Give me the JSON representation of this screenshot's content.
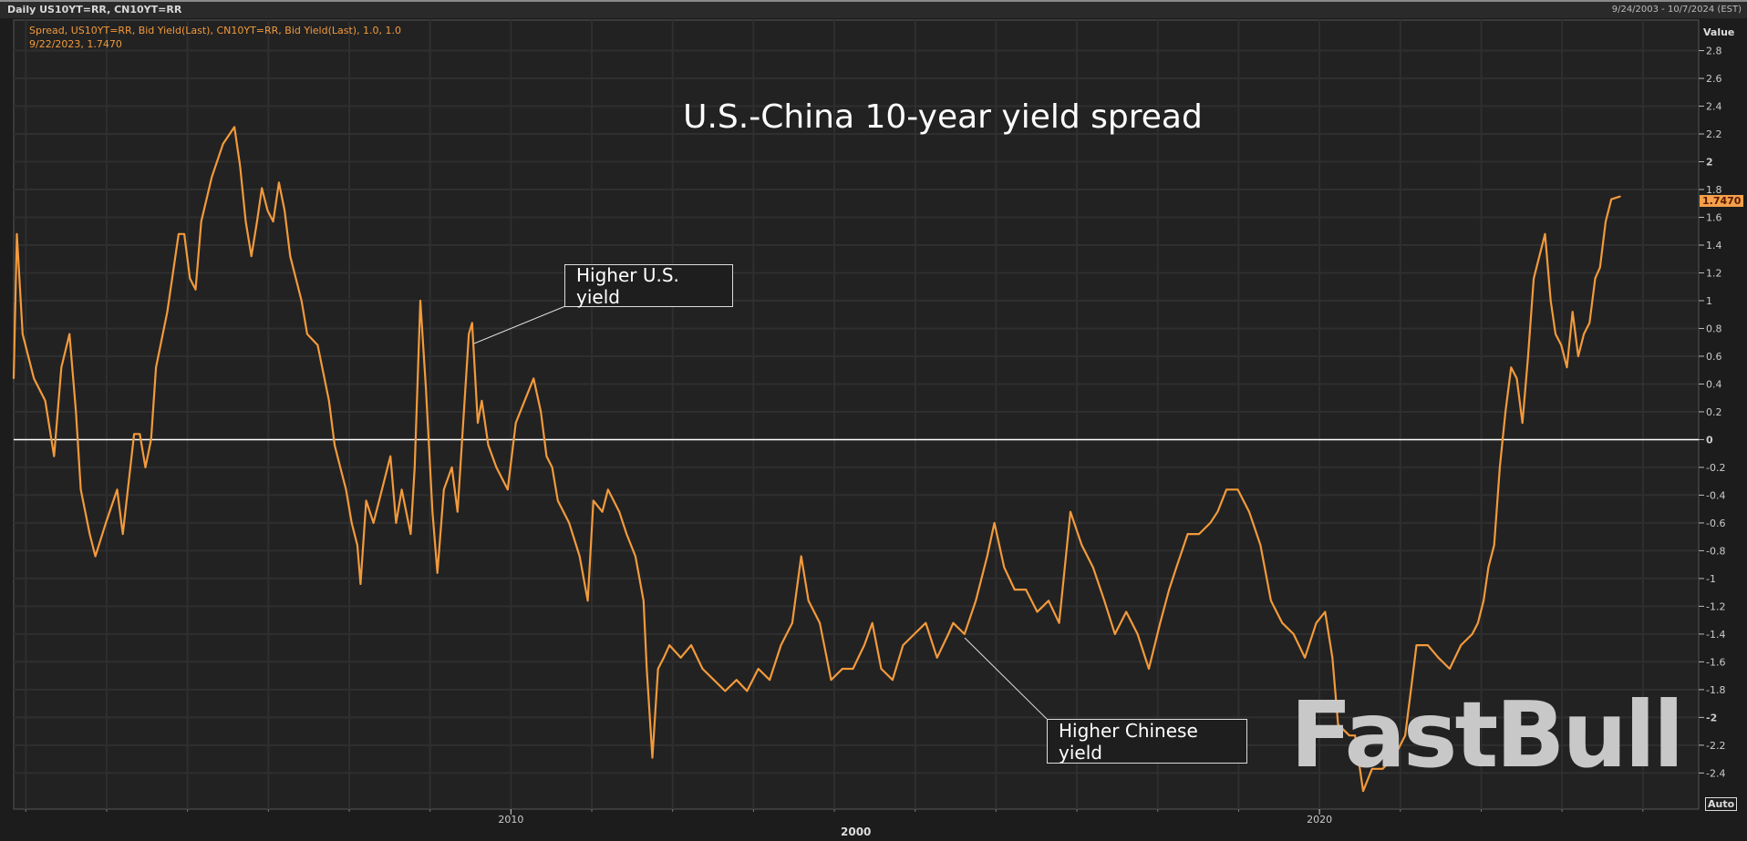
{
  "header": {
    "title": "Daily US10YT=RR, CN10YT=RR",
    "date_range": "9/24/2003 - 10/7/2024 (EST)"
  },
  "legend": {
    "series_line": "Spread, US10YT=RR, Bid Yield(Last), CN10YT=RR, Bid Yield(Last),  1.0, 1.0",
    "cursor_line": "9/22/2023, 1.7470"
  },
  "axis": {
    "value_label": "Value",
    "last_value": "1.7470",
    "auto_label": "Auto",
    "century_label": "2000"
  },
  "watermark": "FastBull",
  "colors": {
    "line": "#f29a3c",
    "background": "#222222",
    "zero_line": "#ffffff",
    "badge": "#f5a04a"
  },
  "chart_data": {
    "type": "line",
    "title": "U.S.-China 10-year yield spread",
    "xlim": [
      2003.85,
      2024.69
    ],
    "ylim": [
      -2.66,
      3.02
    ],
    "x_ticks": [
      {
        "v": 2010,
        "label": "2010"
      },
      {
        "v": 2020,
        "label": "2020"
      }
    ],
    "y_ticks": [
      2.8,
      2.6,
      2.4,
      2.2,
      2,
      1.8,
      1.6,
      1.4,
      1.2,
      1,
      0.8,
      0.6,
      0.4,
      0.2,
      0,
      -0.2,
      -0.4,
      -0.6,
      -0.8,
      -1,
      -1.2,
      -1.4,
      -1.6,
      -1.8,
      -2,
      -2.2,
      -2.4
    ],
    "grid": true,
    "reference_line": 0,
    "annotations": [
      {
        "text": "Higher U.S. yield",
        "x": 2009.52,
        "y": 0.84
      },
      {
        "text": "Higher Chinese yield",
        "x": 2015.61,
        "y": -1.4
      }
    ],
    "series": [
      {
        "x": [
          2003.85,
          2003.89,
          2003.96,
          2004.1,
          2004.24,
          2004.35,
          2004.44,
          2004.54,
          2004.62,
          2004.68,
          2004.79,
          2004.86,
          2004.99,
          2005.13,
          2005.2,
          2005.34,
          2005.41,
          2005.48,
          2005.55,
          2005.61,
          2005.75,
          2005.89,
          2005.96,
          2006.03,
          2006.1,
          2006.17,
          2006.3,
          2006.44,
          2006.58,
          2006.65,
          2006.72,
          2006.79,
          2006.86,
          2006.92,
          2006.99,
          2007.06,
          2007.13,
          2007.2,
          2007.27,
          2007.34,
          2007.41,
          2007.48,
          2007.61,
          2007.75,
          2007.82,
          2007.89,
          2007.96,
          2008.03,
          2008.1,
          2008.14,
          2008.21,
          2008.3,
          2008.44,
          2008.51,
          2008.58,
          2008.65,
          2008.76,
          2008.81,
          2008.88,
          2008.95,
          2009.03,
          2009.09,
          2009.17,
          2009.27,
          2009.34,
          2009.41,
          2009.48,
          2009.52,
          2009.59,
          2009.64,
          2009.72,
          2009.82,
          2009.96,
          2010.06,
          2010.17,
          2010.28,
          2010.37,
          2010.44,
          2010.51,
          2010.58,
          2010.72,
          2010.85,
          2010.95,
          2011.02,
          2011.13,
          2011.2,
          2011.34,
          2011.43,
          2011.54,
          2011.64,
          2011.68,
          2011.75,
          2011.82,
          2011.89,
          2011.96,
          2012.1,
          2012.23,
          2012.37,
          2012.51,
          2012.65,
          2012.79,
          2012.92,
          2013.06,
          2013.2,
          2013.34,
          2013.48,
          2013.59,
          2013.68,
          2013.82,
          2013.96,
          2014.1,
          2014.23,
          2014.37,
          2014.47,
          2014.58,
          2014.72,
          2014.85,
          2014.99,
          2015.13,
          2015.27,
          2015.41,
          2015.47,
          2015.61,
          2015.75,
          2015.89,
          2015.98,
          2016.1,
          2016.23,
          2016.37,
          2016.51,
          2016.65,
          2016.78,
          2016.92,
          2017.06,
          2017.2,
          2017.34,
          2017.47,
          2017.61,
          2017.75,
          2017.89,
          2018.03,
          2018.14,
          2018.23,
          2018.37,
          2018.51,
          2018.65,
          2018.74,
          2018.85,
          2018.99,
          2019.13,
          2019.27,
          2019.4,
          2019.54,
          2019.68,
          2019.82,
          2019.96,
          2020.07,
          2020.16,
          2020.23,
          2020.37,
          2020.44,
          2020.54,
          2020.65,
          2020.78,
          2020.92,
          2021.06,
          2021.13,
          2021.2,
          2021.34,
          2021.47,
          2021.61,
          2021.75,
          2021.89,
          2021.96,
          2022.03,
          2022.09,
          2022.16,
          2022.23,
          2022.3,
          2022.37,
          2022.44,
          2022.51,
          2022.58,
          2022.65,
          2022.72,
          2022.79,
          2022.86,
          2022.92,
          2022.99,
          2023.06,
          2023.13,
          2023.2,
          2023.27,
          2023.34,
          2023.41,
          2023.47,
          2023.54,
          2023.61,
          2023.72
        ],
        "y": [
          0.44,
          1.48,
          0.76,
          0.44,
          0.28,
          -0.12,
          0.52,
          0.76,
          0.2,
          -0.36,
          -0.68,
          -0.84,
          -0.6,
          -0.36,
          -0.68,
          0.04,
          0.04,
          -0.2,
          0.0,
          0.52,
          0.92,
          1.48,
          1.48,
          1.16,
          1.08,
          1.57,
          1.89,
          2.13,
          2.25,
          1.97,
          1.57,
          1.32,
          1.57,
          1.81,
          1.65,
          1.57,
          1.85,
          1.65,
          1.32,
          1.16,
          1.0,
          0.76,
          0.68,
          0.28,
          -0.04,
          -0.2,
          -0.36,
          -0.6,
          -0.76,
          -1.04,
          -0.44,
          -0.6,
          -0.28,
          -0.12,
          -0.6,
          -0.36,
          -0.68,
          -0.2,
          1.0,
          0.36,
          -0.52,
          -0.96,
          -0.36,
          -0.2,
          -0.52,
          0.12,
          0.76,
          0.84,
          0.12,
          0.28,
          -0.04,
          -0.2,
          -0.36,
          0.12,
          0.28,
          0.44,
          0.2,
          -0.12,
          -0.2,
          -0.44,
          -0.6,
          -0.84,
          -1.16,
          -0.44,
          -0.52,
          -0.36,
          -0.52,
          -0.68,
          -0.84,
          -1.16,
          -1.65,
          -2.29,
          -1.65,
          -1.57,
          -1.48,
          -1.57,
          -1.48,
          -1.65,
          -1.73,
          -1.81,
          -1.73,
          -1.81,
          -1.65,
          -1.73,
          -1.48,
          -1.32,
          -0.84,
          -1.16,
          -1.32,
          -1.73,
          -1.65,
          -1.65,
          -1.48,
          -1.32,
          -1.65,
          -1.73,
          -1.48,
          -1.4,
          -1.32,
          -1.57,
          -1.4,
          -1.32,
          -1.4,
          -1.16,
          -0.84,
          -0.6,
          -0.92,
          -1.08,
          -1.08,
          -1.24,
          -1.16,
          -1.32,
          -0.52,
          -0.76,
          -0.92,
          -1.16,
          -1.4,
          -1.24,
          -1.4,
          -1.65,
          -1.32,
          -1.08,
          -0.92,
          -0.68,
          -0.68,
          -0.6,
          -0.52,
          -0.36,
          -0.36,
          -0.52,
          -0.76,
          -1.16,
          -1.32,
          -1.4,
          -1.57,
          -1.32,
          -1.24,
          -1.57,
          -2.05,
          -2.13,
          -2.13,
          -2.53,
          -2.37,
          -2.37,
          -2.29,
          -2.13,
          -1.81,
          -1.48,
          -1.48,
          -1.57,
          -1.65,
          -1.48,
          -1.4,
          -1.32,
          -1.16,
          -0.92,
          -0.76,
          -0.2,
          0.2,
          0.52,
          0.44,
          0.12,
          0.6,
          1.16,
          1.32,
          1.48,
          1.0,
          0.76,
          0.68,
          0.52,
          0.92,
          0.6,
          0.76,
          0.84,
          1.16,
          1.24,
          1.57,
          1.73,
          1.75
        ]
      }
    ]
  }
}
